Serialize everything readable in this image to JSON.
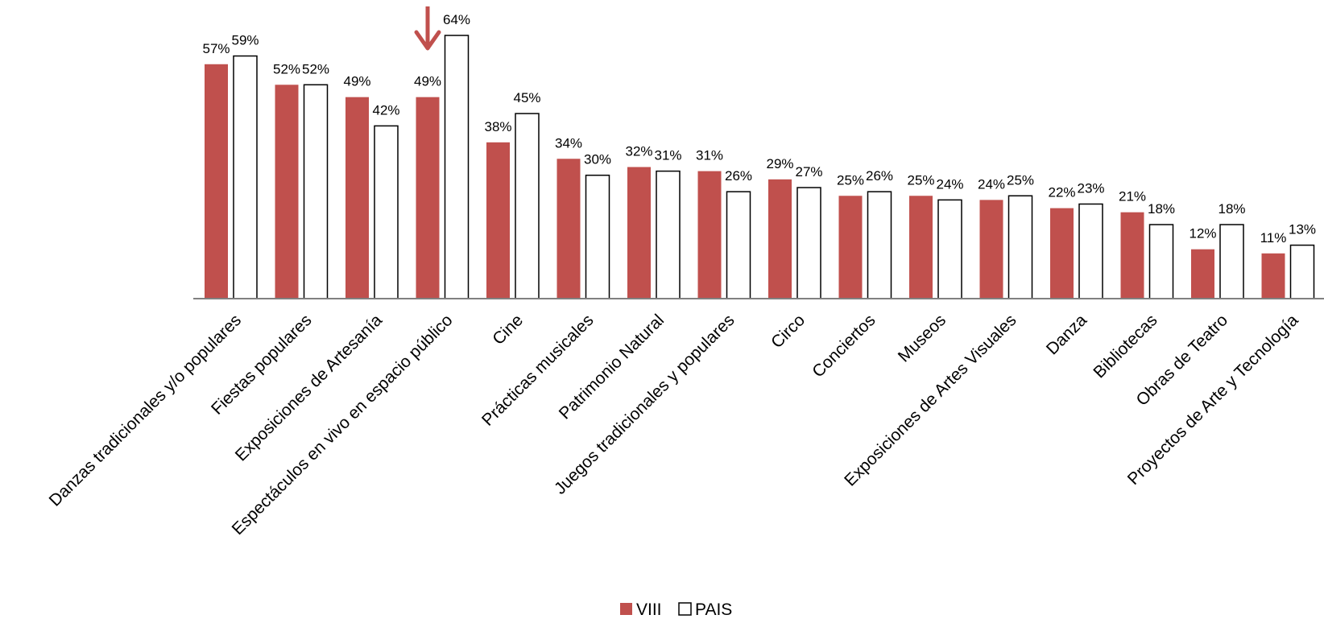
{
  "chart_data": {
    "type": "bar",
    "categories": [
      "Danzas tradicionales y/o populares",
      "Fiestas populares",
      "Exposiciones de Artesanía",
      "Espectáculos en vivo en espacio público",
      "Cine",
      "Prácticas musicales",
      "Patrimonio Natural",
      "Juegos tradicionales y populares",
      "Circo",
      "Conciertos",
      "Museos",
      "Exposiciones de Artes Visuales",
      "Danza",
      "Bibliotecas",
      "Obras de Teatro",
      "Proyectos de Arte y Tecnología"
    ],
    "series": [
      {
        "name": "VIII",
        "values": [
          57,
          52,
          49,
          49,
          38,
          34,
          32,
          31,
          29,
          25,
          25,
          24,
          22,
          21,
          12,
          11
        ],
        "labels": [
          "57%",
          "52%",
          "49%",
          "49%",
          "38%",
          "34%",
          "32%",
          "31%",
          "29%",
          "25%",
          "25%",
          "24%",
          "22%",
          "21%",
          "12%",
          "11%"
        ]
      },
      {
        "name": "PAIS",
        "values": [
          59,
          52,
          42,
          64,
          45,
          30,
          31,
          26,
          27,
          26,
          24,
          25,
          23,
          18,
          18,
          13
        ],
        "labels": [
          "59%",
          "52%",
          "42%",
          "64%",
          "45%",
          "30%",
          "31%",
          "26%",
          "27%",
          "26%",
          "24%",
          "25%",
          "23%",
          "18%",
          "18%",
          "13%"
        ]
      }
    ],
    "ylim": [
      0,
      72
    ],
    "grid": false,
    "legend_position": "bottom-center",
    "highlight_arrow_category": "Espectáculos en vivo en espacio público",
    "colors": {
      "VIII": "#C0504D",
      "PAIS": "#FFFFFF",
      "outline": "#000000",
      "axis": "#808080",
      "arrow": "#C0504D"
    }
  }
}
